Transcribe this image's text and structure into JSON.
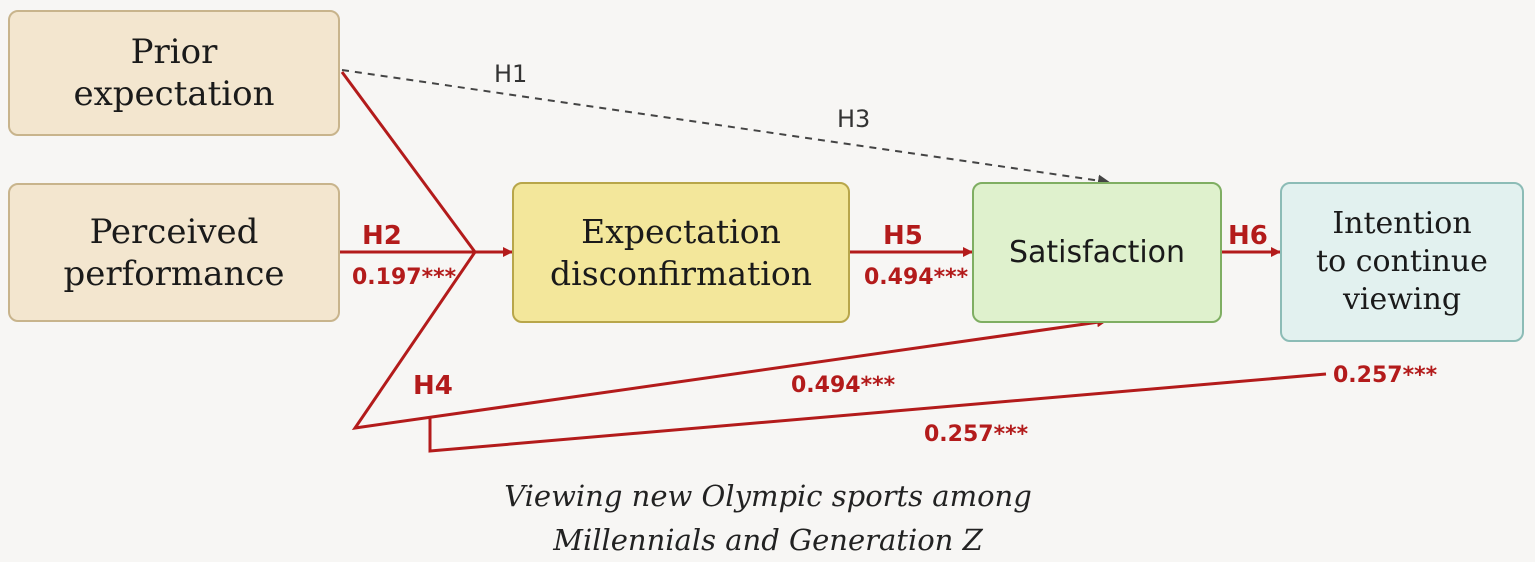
{
  "nodes": {
    "prior_expectation": "Prior\nexpectation",
    "perceived_performance": "Perceived\nperformance",
    "expectation_disconfirmation": "Expectation\ndisconfirmation",
    "satisfaction": "Satisfaction",
    "intention": "Intention\nto continue\nviewing"
  },
  "labels": {
    "h1": "H1",
    "h2": "H2",
    "h3": "H3",
    "h4": "H4",
    "h5": "H5",
    "h6": "H6",
    "coef_h2": "0.197***",
    "coef_h5": "0.494***",
    "coef_h4_satisfaction": "0.494***",
    "coef_h4_intention_lower": "0.257***",
    "coef_h4_intention_right": "0.257***"
  },
  "caption": {
    "line1": "Viewing new Olympic sports among",
    "line2": "Millennials and Generation Z"
  },
  "colors": {
    "significant_path": "#b31b1b",
    "hypothesis_path": "#444444"
  }
}
